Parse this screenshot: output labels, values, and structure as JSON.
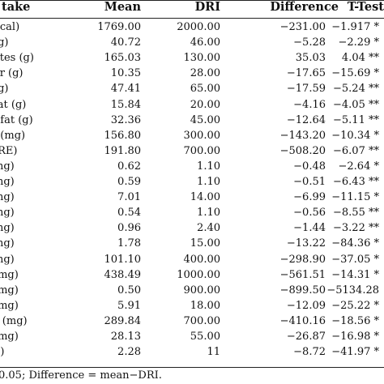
{
  "table": {
    "headers": {
      "intake": "take",
      "mean": "Mean",
      "dri": "DRI",
      "difference": "Difference",
      "ttest": "T-Test"
    },
    "rows": [
      {
        "intake": "kcal)",
        "mean": "1769.00",
        "dri": "2000.00",
        "difference": "−231.00",
        "ttest": "−1.917 *"
      },
      {
        "intake": "(g)",
        "mean": "40.72",
        "dri": "46.00",
        "difference": "−5.28",
        "ttest": "−2.29 *"
      },
      {
        "intake": "ates (g)",
        "mean": "165.03",
        "dri": "130.00",
        "difference": "35.03",
        "ttest": "4.04 **"
      },
      {
        "intake": "er (g)",
        "mean": "10.35",
        "dri": "28.00",
        "difference": "−17.65",
        "ttest": "−15.69 *"
      },
      {
        "intake": "(g)",
        "mean": "47.41",
        "dri": "65.00",
        "difference": "−17.59",
        "ttest": "−5.24 **"
      },
      {
        "intake": "fat (g)",
        "mean": "15.84",
        "dri": "20.00",
        "difference": "−4.16",
        "ttest": "−4.05 **"
      },
      {
        "intake": "l fat (g)",
        "mean": "32.36",
        "dri": "45.00",
        "difference": "−12.64",
        "ttest": "−5.11 **"
      },
      {
        "intake": "l (mg)",
        "mean": "156.80",
        "dri": "300.00",
        "difference": "−143.20",
        "ttest": "−10.34 *"
      },
      {
        "intake": "(RE)",
        "mean": "191.80",
        "dri": "700.00",
        "difference": "−508.20",
        "ttest": "−6.07 **"
      },
      {
        "intake": "mg)",
        "mean": "0.62",
        "dri": "1.10",
        "difference": "−0.48",
        "ttest": "−2.64 *"
      },
      {
        "intake": "mg)",
        "mean": "0.59",
        "dri": "1.10",
        "difference": "−0.51",
        "ttest": "−6.43 **"
      },
      {
        "intake": "mg)",
        "mean": "7.01",
        "dri": "14.00",
        "difference": "−6.99",
        "ttest": "−11.15 *"
      },
      {
        "intake": "mg)",
        "mean": "0.54",
        "dri": "1.10",
        "difference": "−0.56",
        "ttest": "−8.55 **"
      },
      {
        "intake": "mg)",
        "mean": "0.96",
        "dri": "2.40",
        "difference": "−1.44",
        "ttest": "−3.22 **"
      },
      {
        "intake": "mg)",
        "mean": "1.78",
        "dri": "15.00",
        "difference": "−13.22",
        "ttest": "−84.36 *"
      },
      {
        "intake": "mg)",
        "mean": "101.10",
        "dri": "400.00",
        "difference": "−298.90",
        "ttest": "−37.05 *"
      },
      {
        "intake": "(mg)",
        "mean": "438.49",
        "dri": "1000.00",
        "difference": "−561.51",
        "ttest": "−14.31 *"
      },
      {
        "intake": "(mg)",
        "mean": "0.50",
        "dri": "900.00",
        "difference": "−899.50",
        "ttest": "−5134.28"
      },
      {
        "intake": "(mg)",
        "mean": "5.91",
        "dri": "18.00",
        "difference": "−12.09",
        "ttest": "−25.22 *"
      },
      {
        "intake": "s (mg)",
        "mean": "289.84",
        "dri": "700.00",
        "difference": "−410.16",
        "ttest": "−18.56 *"
      },
      {
        "intake": "(mg)",
        "mean": "28.13",
        "dri": "55.00",
        "difference": "−26.87",
        "ttest": "−16.98 *"
      },
      {
        "intake": "g)",
        "mean": "2.28",
        "dri": "11",
        "difference": "−8.72",
        "ttest": "−41.97 *"
      }
    ],
    "footnote": "0.05; Difference = mean−DRI."
  }
}
